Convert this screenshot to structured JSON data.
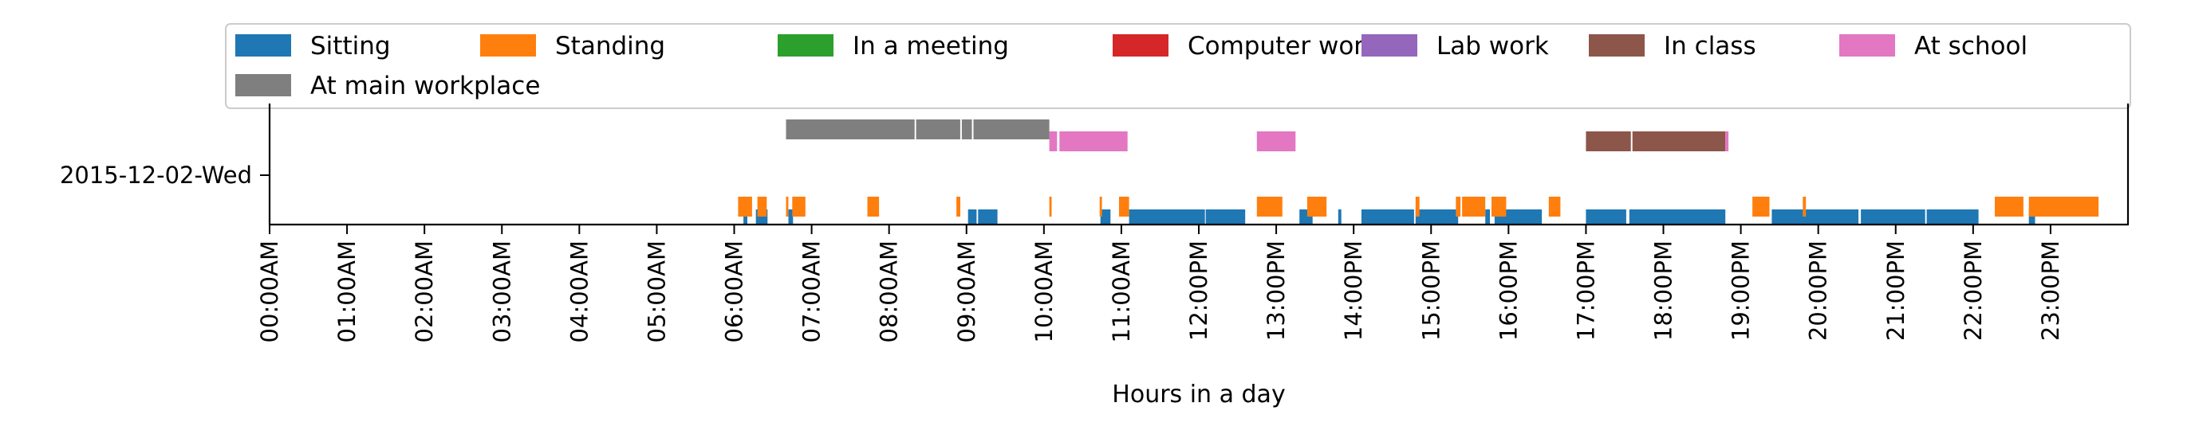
{
  "chart_data": {
    "type": "timeline",
    "xlabel": "Hours in a day",
    "ylabel": "",
    "xlim": [
      0,
      24
    ],
    "y_category": "2015-12-02-Wed",
    "x_ticks": [
      {
        "h": 0,
        "label": "00:00AM"
      },
      {
        "h": 1,
        "label": "01:00AM"
      },
      {
        "h": 2,
        "label": "02:00AM"
      },
      {
        "h": 3,
        "label": "03:00AM"
      },
      {
        "h": 4,
        "label": "04:00AM"
      },
      {
        "h": 5,
        "label": "05:00AM"
      },
      {
        "h": 6,
        "label": "06:00AM"
      },
      {
        "h": 7,
        "label": "07:00AM"
      },
      {
        "h": 8,
        "label": "08:00AM"
      },
      {
        "h": 9,
        "label": "09:00AM"
      },
      {
        "h": 10,
        "label": "10:00AM"
      },
      {
        "h": 11,
        "label": "11:00AM"
      },
      {
        "h": 12,
        "label": "12:00PM"
      },
      {
        "h": 13,
        "label": "13:00PM"
      },
      {
        "h": 14,
        "label": "14:00PM"
      },
      {
        "h": 15,
        "label": "15:00PM"
      },
      {
        "h": 16,
        "label": "16:00PM"
      },
      {
        "h": 17,
        "label": "17:00PM"
      },
      {
        "h": 18,
        "label": "18:00PM"
      },
      {
        "h": 19,
        "label": "19:00PM"
      },
      {
        "h": 20,
        "label": "20:00PM"
      },
      {
        "h": 21,
        "label": "21:00PM"
      },
      {
        "h": 22,
        "label": "22:00PM"
      },
      {
        "h": 23,
        "label": "23:00PM"
      }
    ],
    "legend_position": "top",
    "grid": false,
    "series": [
      {
        "name": "Sitting",
        "color": "#1f77b4",
        "lane": "low",
        "intervals": [
          [
            6.12,
            6.17
          ],
          [
            6.28,
            6.43
          ],
          [
            6.7,
            6.76
          ],
          [
            9.02,
            9.13
          ],
          [
            9.15,
            9.4
          ],
          [
            10.73,
            10.86
          ],
          [
            11.1,
            12.08
          ],
          [
            12.09,
            12.6
          ],
          [
            13.3,
            13.47
          ],
          [
            13.8,
            13.84
          ],
          [
            14.1,
            14.78
          ],
          [
            14.8,
            15.35
          ],
          [
            15.7,
            15.76
          ],
          [
            15.82,
            16.43
          ],
          [
            17.0,
            17.52
          ],
          [
            17.56,
            18.8
          ],
          [
            19.4,
            20.52
          ],
          [
            20.55,
            21.38
          ],
          [
            21.4,
            22.07
          ],
          [
            22.72,
            22.8
          ]
        ]
      },
      {
        "name": "Standing",
        "color": "#ff7f0e",
        "lane": "mid",
        "intervals": [
          [
            6.05,
            6.23
          ],
          [
            6.3,
            6.42
          ],
          [
            6.67,
            6.7
          ],
          [
            6.75,
            6.92
          ],
          [
            7.72,
            7.87
          ],
          [
            8.87,
            8.92
          ],
          [
            10.07,
            10.1
          ],
          [
            10.72,
            10.75
          ],
          [
            10.97,
            11.1
          ],
          [
            12.75,
            13.08
          ],
          [
            13.4,
            13.65
          ],
          [
            14.8,
            14.85
          ],
          [
            15.32,
            15.38
          ],
          [
            15.4,
            15.7
          ],
          [
            15.78,
            15.97
          ],
          [
            16.52,
            16.67
          ],
          [
            19.15,
            19.37
          ],
          [
            19.8,
            19.84
          ],
          [
            22.28,
            22.65
          ],
          [
            22.72,
            23.62
          ]
        ]
      },
      {
        "name": "In a meeting",
        "color": "#2ca02c",
        "lane": "high",
        "intervals": []
      },
      {
        "name": "Computer work",
        "color": "#d62728",
        "lane": "high",
        "intervals": []
      },
      {
        "name": "Lab work",
        "color": "#9467bd",
        "lane": "high",
        "intervals": []
      },
      {
        "name": "In class",
        "color": "#8c564b",
        "lane": "high",
        "intervals": [
          [
            17.0,
            17.58
          ],
          [
            17.6,
            18.8
          ]
        ]
      },
      {
        "name": "At school",
        "color": "#e377c2",
        "lane": "high",
        "intervals": [
          [
            10.07,
            10.17
          ],
          [
            10.2,
            11.08
          ],
          [
            12.75,
            13.25
          ],
          [
            18.8,
            18.84
          ]
        ]
      },
      {
        "name": "At main workplace",
        "color": "#7f7f7f",
        "lane": "top",
        "intervals": [
          [
            6.67,
            8.33
          ],
          [
            8.35,
            8.92
          ],
          [
            8.94,
            9.07
          ],
          [
            9.09,
            10.07
          ]
        ]
      }
    ]
  }
}
